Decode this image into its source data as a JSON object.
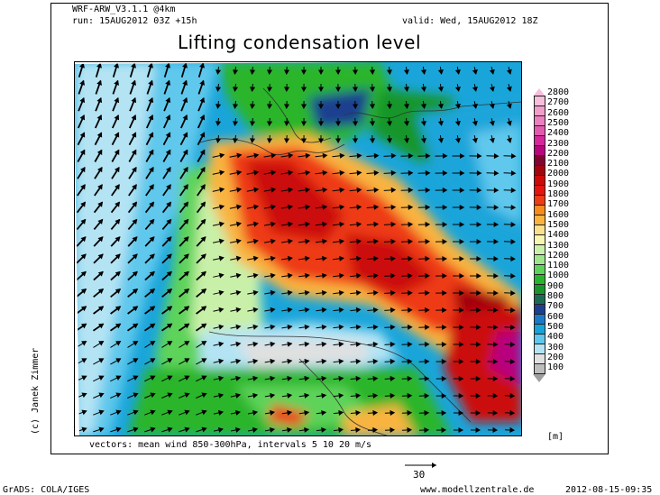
{
  "header": {
    "model": "WRF-ARW_V3.1.1 @4km",
    "run": "run: 15AUG2012 03Z +15h",
    "valid": "valid: Wed, 15AUG2012 18Z",
    "title": "Lifting condensation level"
  },
  "colorbar": {
    "unit": "[m]",
    "levels": [
      {
        "label": "2800",
        "color": "#f7bfdc"
      },
      {
        "label": "2700",
        "color": "#f29ecb"
      },
      {
        "label": "2600",
        "color": "#ec7fbf"
      },
      {
        "label": "2500",
        "color": "#e25aae"
      },
      {
        "label": "2400",
        "color": "#d6279b"
      },
      {
        "label": "2300",
        "color": "#b8067e"
      },
      {
        "label": "2200",
        "color": "#80052f"
      },
      {
        "label": "2100",
        "color": "#a3050e"
      },
      {
        "label": "2000",
        "color": "#cc0a0a"
      },
      {
        "label": "1900",
        "color": "#e4140f"
      },
      {
        "label": "1800",
        "color": "#ee3a15"
      },
      {
        "label": "1700",
        "color": "#f78b1c"
      },
      {
        "label": "1600",
        "color": "#f9b440"
      },
      {
        "label": "1500",
        "color": "#fbe08c"
      },
      {
        "label": "1400",
        "color": "#f6f6b0"
      },
      {
        "label": "1300",
        "color": "#c9f0a8"
      },
      {
        "label": "1200",
        "color": "#9ee68c"
      },
      {
        "label": "1100",
        "color": "#5dd35a"
      },
      {
        "label": "1000",
        "color": "#29b52b"
      },
      {
        "label": "900",
        "color": "#17962a"
      },
      {
        "label": "800",
        "color": "#1b6b52"
      },
      {
        "label": "700",
        "color": "#1d3f8f"
      },
      {
        "label": "600",
        "color": "#1c79c9"
      },
      {
        "label": "500",
        "color": "#16a3d9"
      },
      {
        "label": "400",
        "color": "#5fc8ec"
      },
      {
        "label": "300",
        "color": "#b4e4f4"
      },
      {
        "label": "200",
        "color": "#e0e0e0"
      },
      {
        "label": "100",
        "color": "#bdbdbd"
      }
    ]
  },
  "vectors_caption": "vectors: mean wind 850-300hPa, intervals 5 10 20 m/s",
  "reference_arrow_label": "30",
  "credit": "(c) Janek Zimmer",
  "footer": {
    "left": "GrADS: COLA/IGES",
    "center": "www.modellzentrale.de",
    "right": "2012-08-15-09:35"
  }
}
